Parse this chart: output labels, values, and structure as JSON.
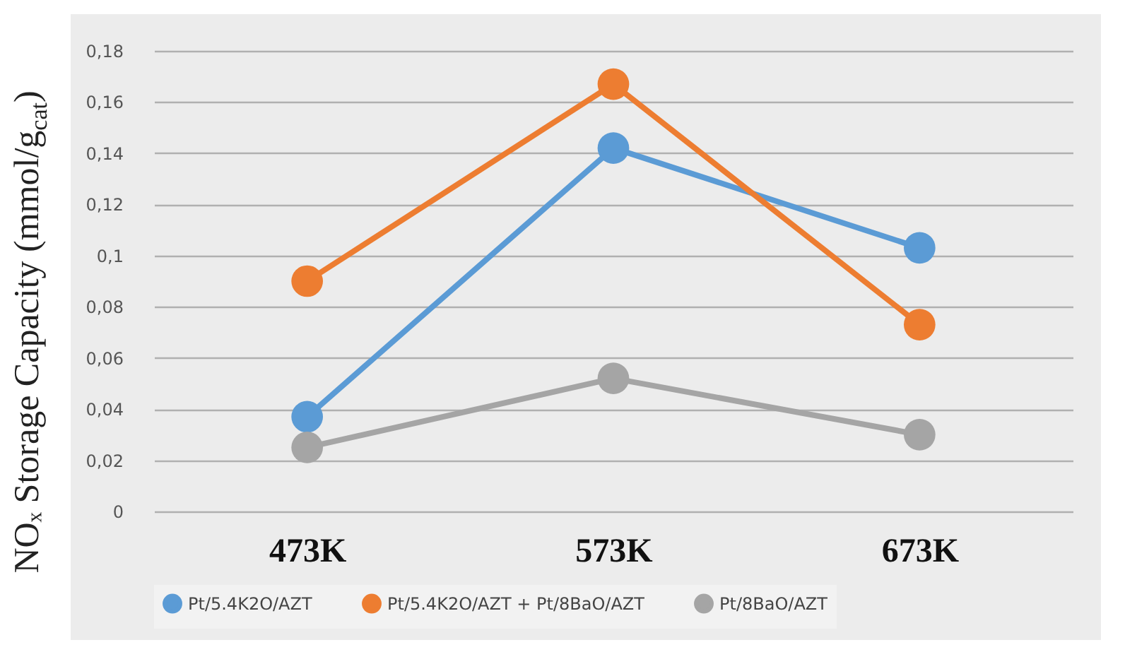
{
  "chart_data": {
    "type": "line",
    "ylabel": "NOₓ Storage Capacity (mmol/g$_{cat}$)",
    "categories": [
      "473K",
      "573K",
      "673K"
    ],
    "series": [
      {
        "name": "Pt/5.4K2O/AZT",
        "color": "#5b9bd5",
        "values": [
          0.037,
          0.142,
          0.103
        ]
      },
      {
        "name": "Pt/5.4K2O/AZT + Pt/8BaO/AZT",
        "color": "#ed7d31",
        "values": [
          0.09,
          0.167,
          0.073
        ]
      },
      {
        "name": "Pt/8BaO/AZT",
        "color": "#a5a5a5",
        "values": [
          0.025,
          0.052,
          0.03
        ]
      }
    ],
    "ylim": [
      0,
      0.18
    ],
    "yticks": [
      0,
      {
        "value": 0.02,
        "label": "0,02"
      },
      {
        "value": 0.04,
        "label": "0,04"
      },
      {
        "value": 0.06,
        "label": "0,06"
      },
      {
        "value": 0.08,
        "label": "0,08"
      },
      {
        "value": 0.1,
        "label": "0,1"
      },
      {
        "value": 0.12,
        "label": "0,12"
      },
      {
        "value": 0.14,
        "label": "0,14"
      },
      {
        "value": 0.16,
        "label": "0,16"
      },
      {
        "value": 0.18,
        "label": "0,18"
      }
    ],
    "grid": "y",
    "legend": "bottom",
    "marker": "circle",
    "line_style": "solid"
  }
}
